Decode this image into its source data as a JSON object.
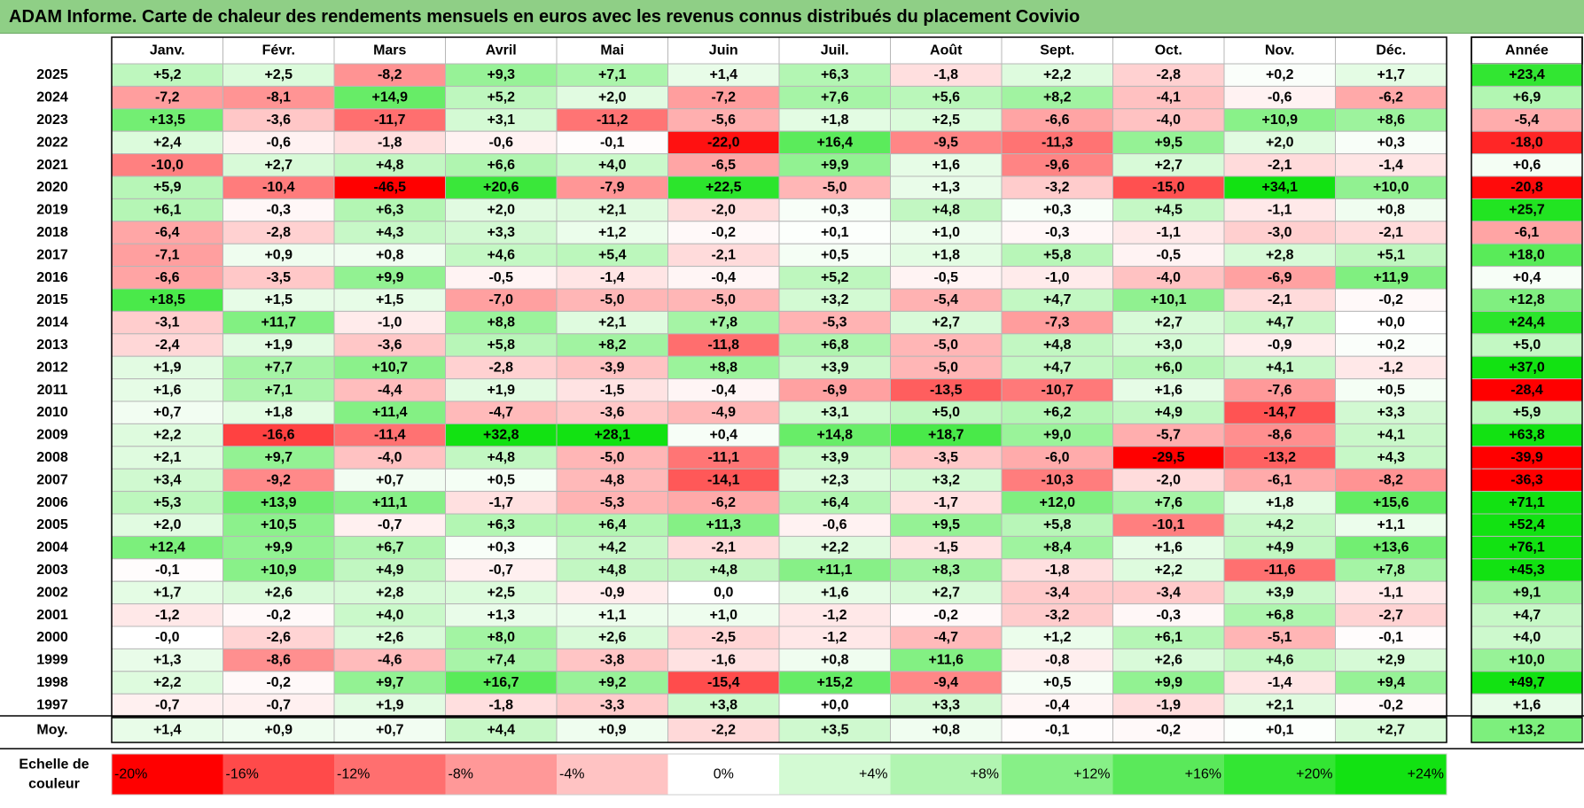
{
  "title": "ADAM Informe. Carte de chaleur des rendements mensuels en euros avec les revenus connus distribués du placement Covivio",
  "chart_data": {
    "type": "heatmap",
    "title": "ADAM Informe. Carte de chaleur des rendements mensuels en euros avec les revenus connus distribués du placement Covivio",
    "months": [
      "Janv.",
      "Févr.",
      "Mars",
      "Avril",
      "Mai",
      "Juin",
      "Juil.",
      "Août",
      "Sept.",
      "Oct.",
      "Nov.",
      "Déc."
    ],
    "year_header": "Année",
    "rows": [
      {
        "year": "2025",
        "values": [
          "+5,2",
          "+2,5",
          "-8,2",
          "+9,3",
          "+7,1",
          "+1,4",
          "+6,3",
          "-1,8",
          "+2,2",
          "-2,8",
          "+0,2",
          "+1,7"
        ],
        "annual": "+23,4"
      },
      {
        "year": "2024",
        "values": [
          "-7,2",
          "-8,1",
          "+14,9",
          "+5,2",
          "+2,0",
          "-7,2",
          "+7,6",
          "+5,6",
          "+8,2",
          "-4,1",
          "-0,6",
          "-6,2"
        ],
        "annual": "+6,9"
      },
      {
        "year": "2023",
        "values": [
          "+13,5",
          "-3,6",
          "-11,7",
          "+3,1",
          "-11,2",
          "-5,6",
          "+1,8",
          "+2,5",
          "-6,6",
          "-4,0",
          "+10,9",
          "+8,6"
        ],
        "annual": "-5,4"
      },
      {
        "year": "2022",
        "values": [
          "+2,4",
          "-0,6",
          "-1,8",
          "-0,6",
          "-0,1",
          "-22,0",
          "+16,4",
          "-9,5",
          "-11,3",
          "+9,5",
          "+2,0",
          "+0,3"
        ],
        "annual": "-18,0"
      },
      {
        "year": "2021",
        "values": [
          "-10,0",
          "+2,7",
          "+4,8",
          "+6,6",
          "+4,0",
          "-6,5",
          "+9,9",
          "+1,6",
          "-9,6",
          "+2,7",
          "-2,1",
          "-1,4"
        ],
        "annual": "+0,6"
      },
      {
        "year": "2020",
        "values": [
          "+5,9",
          "-10,4",
          "-46,5",
          "+20,6",
          "-7,9",
          "+22,5",
          "-5,0",
          "+1,3",
          "-3,2",
          "-15,0",
          "+34,1",
          "+10,0"
        ],
        "annual": "-20,8"
      },
      {
        "year": "2019",
        "values": [
          "+6,1",
          "-0,3",
          "+6,3",
          "+2,0",
          "+2,1",
          "-2,0",
          "+0,3",
          "+4,8",
          "+0,3",
          "+4,5",
          "-1,1",
          "+0,8"
        ],
        "annual": "+25,7"
      },
      {
        "year": "2018",
        "values": [
          "-6,4",
          "-2,8",
          "+4,3",
          "+3,3",
          "+1,2",
          "-0,2",
          "+0,1",
          "+1,0",
          "-0,3",
          "-1,1",
          "-3,0",
          "-2,1"
        ],
        "annual": "-6,1"
      },
      {
        "year": "2017",
        "values": [
          "-7,1",
          "+0,9",
          "+0,8",
          "+4,6",
          "+5,4",
          "-2,1",
          "+0,5",
          "+1,8",
          "+5,8",
          "-0,5",
          "+2,8",
          "+5,1"
        ],
        "annual": "+18,0"
      },
      {
        "year": "2016",
        "values": [
          "-6,6",
          "-3,5",
          "+9,9",
          "-0,5",
          "-1,4",
          "-0,4",
          "+5,2",
          "-0,5",
          "-1,0",
          "-4,0",
          "-6,9",
          "+11,9"
        ],
        "annual": "+0,4"
      },
      {
        "year": "2015",
        "values": [
          "+18,5",
          "+1,5",
          "+1,5",
          "-7,0",
          "-5,0",
          "-5,0",
          "+3,2",
          "-5,4",
          "+4,7",
          "+10,1",
          "-2,1",
          "-0,2"
        ],
        "annual": "+12,8"
      },
      {
        "year": "2014",
        "values": [
          "-3,1",
          "+11,7",
          "-1,0",
          "+8,8",
          "+2,1",
          "+7,8",
          "-5,3",
          "+2,7",
          "-7,3",
          "+2,7",
          "+4,7",
          "+0,0"
        ],
        "annual": "+24,4"
      },
      {
        "year": "2013",
        "values": [
          "-2,4",
          "+1,9",
          "-3,6",
          "+5,8",
          "+8,2",
          "-11,8",
          "+6,8",
          "-5,0",
          "+4,8",
          "+3,0",
          "-0,9",
          "+0,2"
        ],
        "annual": "+5,0"
      },
      {
        "year": "2012",
        "values": [
          "+1,9",
          "+7,7",
          "+10,7",
          "-2,8",
          "-3,9",
          "+8,8",
          "+3,9",
          "-5,0",
          "+4,7",
          "+6,0",
          "+4,1",
          "-1,2"
        ],
        "annual": "+37,0"
      },
      {
        "year": "2011",
        "values": [
          "+1,6",
          "+7,1",
          "-4,4",
          "+1,9",
          "-1,5",
          "-0,4",
          "-6,9",
          "-13,5",
          "-10,7",
          "+1,6",
          "-7,6",
          "+0,5"
        ],
        "annual": "-28,4"
      },
      {
        "year": "2010",
        "values": [
          "+0,7",
          "+1,8",
          "+11,4",
          "-4,7",
          "-3,6",
          "-4,9",
          "+3,1",
          "+5,0",
          "+6,2",
          "+4,9",
          "-14,7",
          "+3,3"
        ],
        "annual": "+5,9"
      },
      {
        "year": "2009",
        "values": [
          "+2,2",
          "-16,6",
          "-11,4",
          "+32,8",
          "+28,1",
          "+0,4",
          "+14,8",
          "+18,7",
          "+9,0",
          "-5,7",
          "-8,6",
          "+4,1"
        ],
        "annual": "+63,8"
      },
      {
        "year": "2008",
        "values": [
          "+2,1",
          "+9,7",
          "-4,0",
          "+4,8",
          "-5,0",
          "-11,1",
          "+3,9",
          "-3,5",
          "-6,0",
          "-29,5",
          "-13,2",
          "+4,3"
        ],
        "annual": "-39,9"
      },
      {
        "year": "2007",
        "values": [
          "+3,4",
          "-9,2",
          "+0,7",
          "+0,5",
          "-4,8",
          "-14,1",
          "+2,3",
          "+3,2",
          "-10,3",
          "-2,0",
          "-6,1",
          "-8,2"
        ],
        "annual": "-36,3"
      },
      {
        "year": "2006",
        "values": [
          "+5,3",
          "+13,9",
          "+11,1",
          "-1,7",
          "-5,3",
          "-6,2",
          "+6,4",
          "-1,7",
          "+12,0",
          "+7,6",
          "+1,8",
          "+15,6"
        ],
        "annual": "+71,1"
      },
      {
        "year": "2005",
        "values": [
          "+2,0",
          "+10,5",
          "-0,7",
          "+6,3",
          "+6,4",
          "+11,3",
          "-0,6",
          "+9,5",
          "+5,8",
          "-10,1",
          "+4,2",
          "+1,1"
        ],
        "annual": "+52,4"
      },
      {
        "year": "2004",
        "values": [
          "+12,4",
          "+9,9",
          "+6,7",
          "+0,3",
          "+4,2",
          "-2,1",
          "+2,2",
          "-1,5",
          "+8,4",
          "+1,6",
          "+4,9",
          "+13,6"
        ],
        "annual": "+76,1"
      },
      {
        "year": "2003",
        "values": [
          "-0,1",
          "+10,9",
          "+4,9",
          "-0,7",
          "+4,8",
          "+4,8",
          "+11,1",
          "+8,3",
          "-1,8",
          "+2,2",
          "-11,6",
          "+7,8"
        ],
        "annual": "+45,3"
      },
      {
        "year": "2002",
        "values": [
          "+1,7",
          "+2,6",
          "+2,8",
          "+2,5",
          "-0,9",
          "0,0",
          "+1,6",
          "+2,7",
          "-3,4",
          "-3,4",
          "+3,9",
          "-1,1"
        ],
        "annual": "+9,1"
      },
      {
        "year": "2001",
        "values": [
          "-1,2",
          "-0,2",
          "+4,0",
          "+1,3",
          "+1,1",
          "+1,0",
          "-1,2",
          "-0,2",
          "-3,2",
          "-0,3",
          "+6,8",
          "-2,7"
        ],
        "annual": "+4,7"
      },
      {
        "year": "2000",
        "values": [
          "-0,0",
          "-2,6",
          "+2,6",
          "+8,0",
          "+2,6",
          "-2,5",
          "-1,2",
          "-4,7",
          "+1,2",
          "+6,1",
          "-5,1",
          "-0,1"
        ],
        "annual": "+4,0"
      },
      {
        "year": "1999",
        "values": [
          "+1,3",
          "-8,6",
          "-4,6",
          "+7,4",
          "-3,8",
          "-1,6",
          "+0,8",
          "+11,6",
          "-0,8",
          "+2,6",
          "+4,6",
          "+2,9"
        ],
        "annual": "+10,0"
      },
      {
        "year": "1998",
        "values": [
          "+2,2",
          "-0,2",
          "+9,7",
          "+16,7",
          "+9,2",
          "-15,4",
          "+15,2",
          "-9,4",
          "+0,5",
          "+9,9",
          "-1,4",
          "+9,4"
        ],
        "annual": "+49,7"
      },
      {
        "year": "1997",
        "values": [
          "-0,7",
          "-0,7",
          "+1,9",
          "-1,8",
          "-3,3",
          "+3,8",
          "+0,0",
          "+3,3",
          "-0,4",
          "-1,9",
          "+2,1",
          "-0,2"
        ],
        "annual": "+1,6"
      }
    ],
    "average": {
      "label": "Moy.",
      "values": [
        "+1,4",
        "+0,9",
        "+0,7",
        "+4,4",
        "+0,9",
        "-2,2",
        "+3,5",
        "+0,8",
        "-0,1",
        "-0,2",
        "+0,1",
        "+2,7"
      ],
      "annual": "+13,2"
    },
    "legend": {
      "title_lines": [
        "Echelle de",
        "couleur"
      ],
      "items": [
        "-20%",
        "-16%",
        "-12%",
        "-8%",
        "-4%",
        "0%",
        "+4%",
        "+8%",
        "+12%",
        "+16%",
        "+20%",
        "+24%"
      ],
      "values": [
        -20,
        -16,
        -12,
        -8,
        -4,
        0,
        4,
        8,
        12,
        16,
        20,
        24
      ]
    },
    "colors": {
      "legend": [
        "#ff0000",
        "#ff4a4a",
        "#ff6f6f",
        "#ff9898",
        "#ffc3c3",
        "#ffffff",
        "#d3fad3",
        "#b1f5b1",
        "#87f087",
        "#5ae95a",
        "#33e633",
        "#12e212"
      ],
      "neg_max": "#ff0000",
      "pos_max": "#12e212",
      "neutral": "#ffffff",
      "title_bg": "#8fcf86"
    }
  }
}
